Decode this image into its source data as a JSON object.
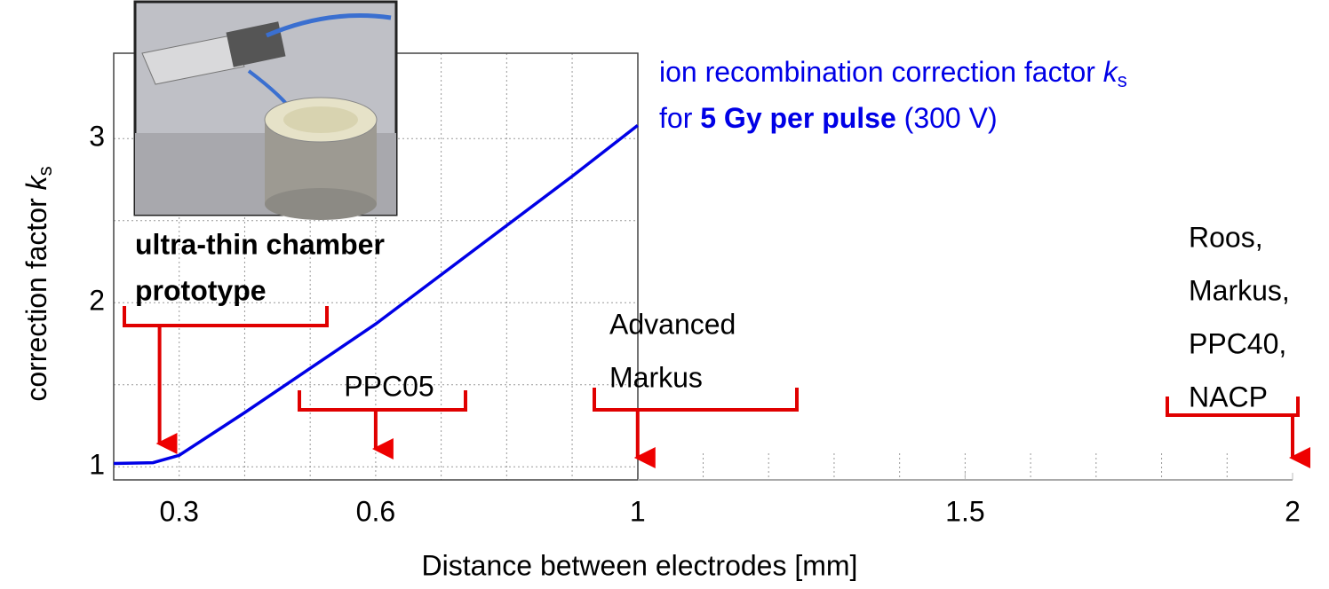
{
  "chart_data": {
    "type": "line",
    "title_parts": [
      "ion recombination correction factor ",
      "k",
      "s",
      "for ",
      "5 Gy per pulse",
      " (300 V)"
    ],
    "ylabel_parts": [
      "correction factor ",
      "k",
      "s"
    ],
    "xlabel": "Distance between electrodes [mm]",
    "x": [
      0.2,
      0.26,
      0.3,
      0.4,
      0.5,
      0.6,
      0.7,
      0.8,
      0.9,
      1.0
    ],
    "series": [
      {
        "name": "ion recombination correction factor",
        "color": "#0000e6",
        "values": [
          1.02,
          1.025,
          1.07,
          1.33,
          1.6,
          1.87,
          2.17,
          2.47,
          2.77,
          3.08
        ]
      }
    ],
    "xlim": [
      0.2,
      2
    ],
    "ylim": [
      0.92,
      3.52
    ],
    "xticks": [
      0.3,
      0.6,
      1,
      1.5,
      2
    ],
    "yticks": [
      1,
      2,
      3
    ],
    "xminor": [
      0.4,
      0.5,
      0.7,
      0.8,
      0.9,
      1.1,
      1.2,
      1.3,
      1.4,
      1.5,
      1.6,
      1.7,
      1.8,
      1.9
    ],
    "yminor": [
      1.5,
      2.5
    ],
    "grid": true,
    "annotations": [
      {
        "lines": [
          "ultra-thin chamber"
        ],
        "color": "#000000",
        "bold": true
      },
      {
        "lines": [
          "prototype"
        ],
        "color": "#e00000",
        "bold": true
      },
      {
        "lines": [
          "PPC05"
        ],
        "color": "#000000",
        "bold": false
      },
      {
        "lines": [
          "Advanced",
          "Markus"
        ],
        "color": "#000000",
        "bold": false
      },
      {
        "lines": [
          "Roos,",
          "Markus,",
          "PPC40,",
          "NACP"
        ],
        "color": "#000000",
        "bold": false
      }
    ],
    "pointers": [
      0.27,
      0.6,
      1,
      2
    ],
    "pointer_color": "#e00000"
  }
}
